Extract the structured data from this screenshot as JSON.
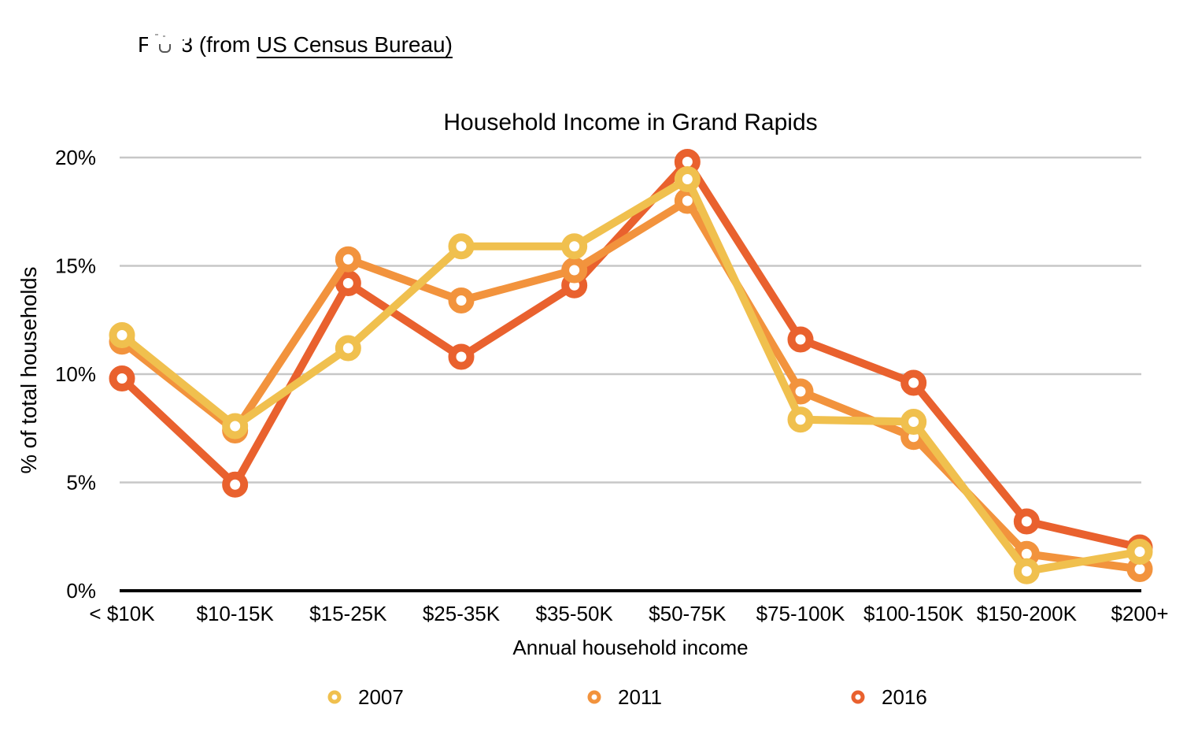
{
  "header": {
    "prefix": "Fig. 3 (from ",
    "link_text": "US Census Bureau",
    "suffix": ")"
  },
  "chart_data": {
    "type": "line",
    "title": "Household Income in Grand Rapids",
    "xlabel": "Annual household income",
    "ylabel": "% of total households",
    "categories": [
      "< $10K",
      "$10-15K",
      "$15-25K",
      "$25-35K",
      "$35-50K",
      "$50-75K",
      "$75-100K",
      "$100-150K",
      "$150-200K",
      "$200+"
    ],
    "series": [
      {
        "name": "2007",
        "color": "#F0C04E",
        "values": [
          11.8,
          7.6,
          11.2,
          15.9,
          15.9,
          19.0,
          7.9,
          7.8,
          0.9,
          1.8
        ]
      },
      {
        "name": "2011",
        "color": "#F2933D",
        "values": [
          11.5,
          7.4,
          15.3,
          13.4,
          14.8,
          18.0,
          9.2,
          7.1,
          1.7,
          1.0
        ]
      },
      {
        "name": "2016",
        "color": "#E9612E",
        "values": [
          9.8,
          4.9,
          14.2,
          10.8,
          14.1,
          19.8,
          11.6,
          9.6,
          3.2,
          2.0
        ]
      }
    ],
    "ylim": [
      0,
      20
    ],
    "yticks": [
      {
        "label": "0%",
        "value": 0
      },
      {
        "label": "5%",
        "value": 5
      },
      {
        "label": "10%",
        "value": 10
      },
      {
        "label": "15%",
        "value": 15
      },
      {
        "label": "20%",
        "value": 20
      }
    ],
    "grid": true,
    "legend_position": "bottom",
    "gridline_color": "#C7C7C7",
    "axis_color": "#000000"
  }
}
